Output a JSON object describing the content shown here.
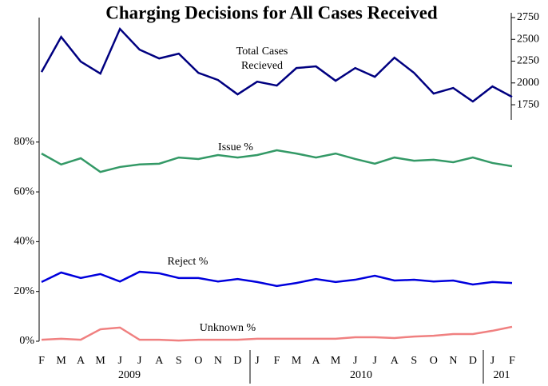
{
  "chart_data": {
    "type": "line",
    "title": "Charging Decisions for All Cases Received",
    "categories": [
      "F",
      "M",
      "A",
      "M",
      "J",
      "J",
      "A",
      "S",
      "O",
      "N",
      "D",
      "J",
      "F",
      "M",
      "A",
      "M",
      "J",
      "J",
      "A",
      "S",
      "O",
      "N",
      "D",
      "J",
      "F"
    ],
    "years": [
      "2009",
      "2010",
      "201"
    ],
    "ylim": [
      0,
      130
    ],
    "yticks": [
      {
        "value": 0,
        "label": "0%"
      },
      {
        "value": 20,
        "label": "20%"
      },
      {
        "value": 40,
        "label": "40%"
      },
      {
        "value": 60,
        "label": "60%"
      },
      {
        "value": 80,
        "label": "80%"
      }
    ],
    "y2lim": [
      1600,
      2750
    ],
    "y2ticks": [
      1750,
      2000,
      2250,
      2500,
      2750
    ],
    "series": [
      {
        "name": "Total Cases Recieved",
        "color": "#000080",
        "axis": "y2",
        "values": [
          2125,
          2528,
          2245,
          2107,
          2620,
          2382,
          2281,
          2336,
          2116,
          2034,
          1869,
          2015,
          1970,
          2171,
          2190,
          2025,
          2171,
          2070,
          2290,
          2116,
          1878,
          1942,
          1787,
          1960,
          1840
        ]
      },
      {
        "name": "Issue %",
        "color": "#339966",
        "values": [
          75.4,
          71,
          73.5,
          68,
          70,
          71,
          71.3,
          73.8,
          73.2,
          74.8,
          73.8,
          74.8,
          76.7,
          75.4,
          73.8,
          75.4,
          73.2,
          71.3,
          73.8,
          72.5,
          72.9,
          71.9,
          73.8,
          71.6,
          70.3
        ]
      },
      {
        "name": "Reject %",
        "color": "#0000dd",
        "values": [
          23.8,
          27.6,
          25.4,
          27,
          24,
          27.9,
          27.3,
          25.4,
          25.4,
          24,
          25,
          23.8,
          22.2,
          23.4,
          25,
          23.8,
          24.7,
          26.3,
          24.4,
          24.7,
          24,
          24.4,
          22.8,
          23.8,
          23.4
        ]
      },
      {
        "name": "Unknown %",
        "color": "#f08080",
        "values": [
          0.6,
          1,
          0.6,
          4.8,
          5.5,
          0.6,
          0.6,
          0.3,
          0.6,
          0.6,
          0.6,
          1,
          1,
          1,
          1,
          1,
          1.6,
          1.6,
          1.3,
          1.9,
          2.2,
          2.9,
          2.9,
          4.2,
          5.8
        ]
      }
    ]
  }
}
